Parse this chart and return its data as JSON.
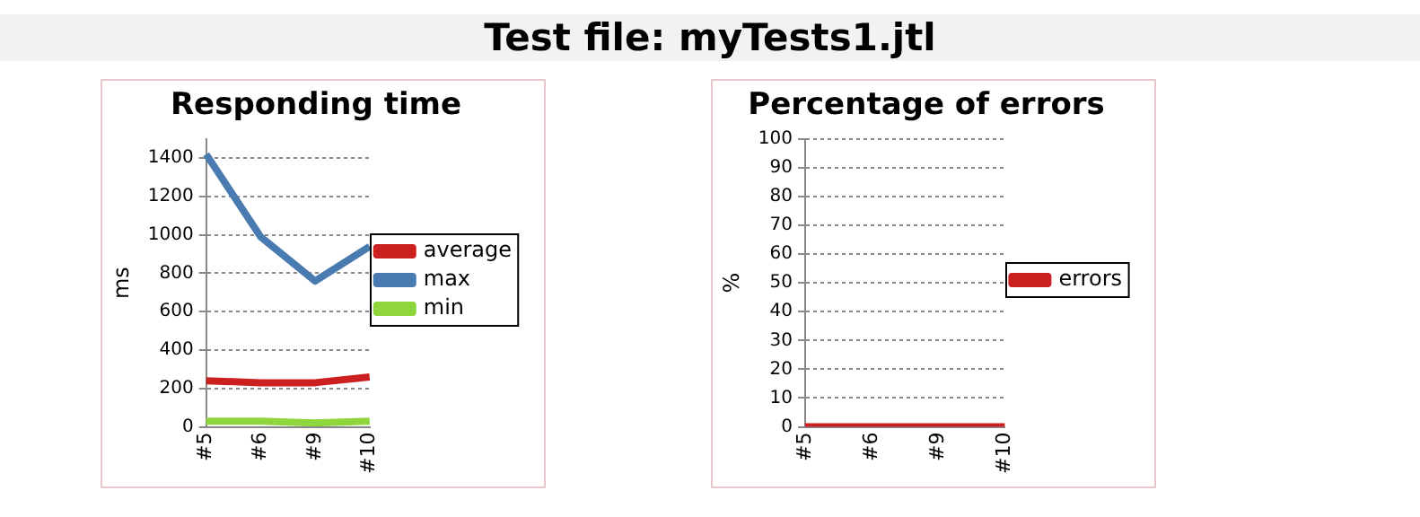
{
  "chart_data": [
    {
      "type": "other",
      "title": "Test file: myTests1.jtl"
    },
    {
      "type": "line",
      "title": "Responding time",
      "ylabel": "ms",
      "categories": [
        "#5",
        "#6",
        "#9",
        "#10"
      ],
      "series": [
        {
          "name": "average",
          "color": "#cc2020",
          "values": [
            240,
            230,
            230,
            260
          ]
        },
        {
          "name": "max",
          "color": "#4a7bb0",
          "values": [
            1420,
            990,
            760,
            940
          ]
        },
        {
          "name": "min",
          "color": "#8ed63c",
          "values": [
            30,
            30,
            20,
            30
          ]
        }
      ],
      "ylim": [
        0,
        1500
      ],
      "yticks": [
        0,
        200,
        400,
        600,
        800,
        1000,
        1200,
        1400
      ],
      "grid": "y",
      "legend": "right",
      "marker": "none",
      "line_style": "solid"
    },
    {
      "type": "line",
      "title": "Percentage of errors",
      "ylabel": "%",
      "categories": [
        "#5",
        "#6",
        "#9",
        "#10"
      ],
      "series": [
        {
          "name": "errors",
          "color": "#cc2020",
          "values": [
            0,
            0,
            0,
            0
          ]
        }
      ],
      "ylim": [
        0,
        100
      ],
      "yticks": [
        0,
        10,
        20,
        30,
        40,
        50,
        60,
        70,
        80,
        90,
        100
      ],
      "grid": "y",
      "legend": "right",
      "marker": "none",
      "line_style": "solid"
    }
  ]
}
